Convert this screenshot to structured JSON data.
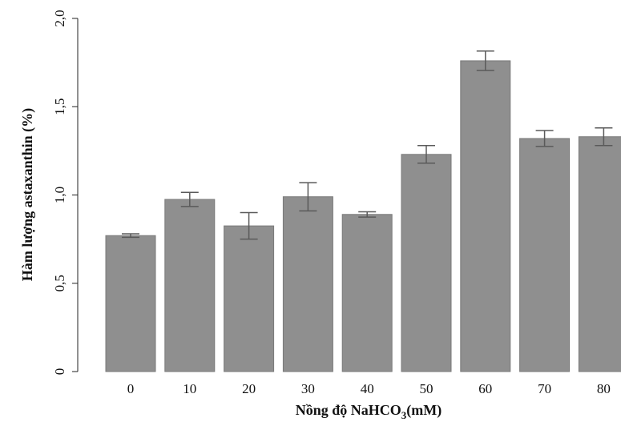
{
  "chart_data": {
    "type": "bar",
    "categories": [
      "0",
      "10",
      "20",
      "30",
      "40",
      "50",
      "60",
      "70",
      "80"
    ],
    "values": [
      0.77,
      0.975,
      0.825,
      0.99,
      0.89,
      1.23,
      1.76,
      1.32,
      1.33
    ],
    "errors": [
      0.01,
      0.04,
      0.075,
      0.08,
      0.015,
      0.05,
      0.055,
      0.045,
      0.05
    ],
    "xlabel_prefix": "Nồng độ NaHCO",
    "xlabel_sub": "3",
    "xlabel_suffix": "(mM)",
    "ylabel": "Hàm lượng astaxanthin (%)",
    "ylim": [
      0,
      2.0
    ],
    "yticks": [
      0,
      0.5,
      1.0,
      1.5,
      2.0
    ],
    "ytick_labels": [
      "0",
      "0,5",
      "1,0",
      "1,5",
      "2,0"
    ],
    "grid": false,
    "colors": {
      "bar": "#8f8f8f",
      "bar_edge": "#7a7a7a",
      "error_bar": "#5a5a5a"
    }
  }
}
